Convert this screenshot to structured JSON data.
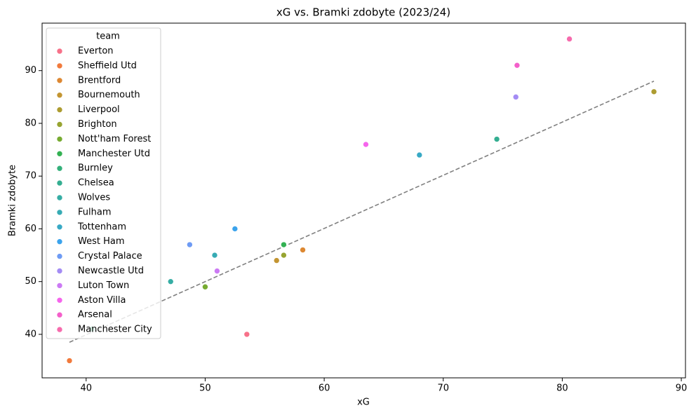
{
  "chart_data": {
    "type": "scatter",
    "title": "xG vs. Bramki zdobyte (2023/24)",
    "x_label": "xG",
    "y_label": "Bramki zdobyte",
    "xlim": [
      36.3,
      90.35
    ],
    "ylim": [
      31.75,
      99.0
    ],
    "xticks": [
      40,
      50,
      60,
      70,
      80,
      90
    ],
    "yticks": [
      40,
      50,
      60,
      70,
      80,
      90
    ],
    "legend_title": "team",
    "legend": "upper left",
    "series": [
      {
        "name": "Everton",
        "color": "#f77189",
        "x": [
          53.5
        ],
        "values": [
          40
        ]
      },
      {
        "name": "Sheffield Utd",
        "color": "#f17a3c",
        "x": [
          38.6
        ],
        "values": [
          35
        ]
      },
      {
        "name": "Brentford",
        "color": "#dd8832",
        "x": [
          58.2
        ],
        "values": [
          56
        ]
      },
      {
        "name": "Bournemouth",
        "color": "#c39532",
        "x": [
          56.0
        ],
        "values": [
          54
        ]
      },
      {
        "name": "Liverpool",
        "color": "#ad9c31",
        "x": [
          87.7
        ],
        "values": [
          86
        ]
      },
      {
        "name": "Brighton",
        "color": "#97a431",
        "x": [
          56.6
        ],
        "values": [
          55
        ]
      },
      {
        "name": "Nott'ham Forest",
        "color": "#77ab31",
        "x": [
          50.0
        ],
        "values": [
          49
        ]
      },
      {
        "name": "Manchester Utd",
        "color": "#33b153",
        "x": [
          56.6
        ],
        "values": [
          57
        ]
      },
      {
        "name": "Burnley",
        "color": "#33b07a",
        "x": [
          40.5
        ],
        "values": [
          41
        ]
      },
      {
        "name": "Chelsea",
        "color": "#34ae91",
        "x": [
          74.5
        ],
        "values": [
          77
        ]
      },
      {
        "name": "Wolves",
        "color": "#36ada4",
        "x": [
          47.1
        ],
        "values": [
          50
        ]
      },
      {
        "name": "Fulham",
        "color": "#37abb4",
        "x": [
          50.8
        ],
        "values": [
          55
        ]
      },
      {
        "name": "Tottenham",
        "color": "#38a9c5",
        "x": [
          68.0
        ],
        "values": [
          74
        ]
      },
      {
        "name": "West Ham",
        "color": "#3ba3ec",
        "x": [
          52.5
        ],
        "values": [
          60
        ]
      },
      {
        "name": "Crystal Palace",
        "color": "#6e9bf4",
        "x": [
          48.7
        ],
        "values": [
          57
        ]
      },
      {
        "name": "Newcastle Utd",
        "color": "#a48cf4",
        "x": [
          76.1
        ],
        "values": [
          85
        ]
      },
      {
        "name": "Luton Town",
        "color": "#cc7af4",
        "x": [
          51.0
        ],
        "values": [
          52
        ]
      },
      {
        "name": "Aston Villa",
        "color": "#f565ec",
        "x": [
          63.5
        ],
        "values": [
          76
        ]
      },
      {
        "name": "Arsenal",
        "color": "#f45fca",
        "x": [
          76.2
        ],
        "values": [
          91
        ]
      },
      {
        "name": "Manchester City",
        "color": "#f66bad",
        "x": [
          80.6
        ],
        "values": [
          96
        ]
      }
    ],
    "trend": {
      "color": "#808080",
      "linestyle": "dashed",
      "x": [
        38.6,
        87.7
      ],
      "values": [
        38.5,
        88.0
      ]
    }
  }
}
